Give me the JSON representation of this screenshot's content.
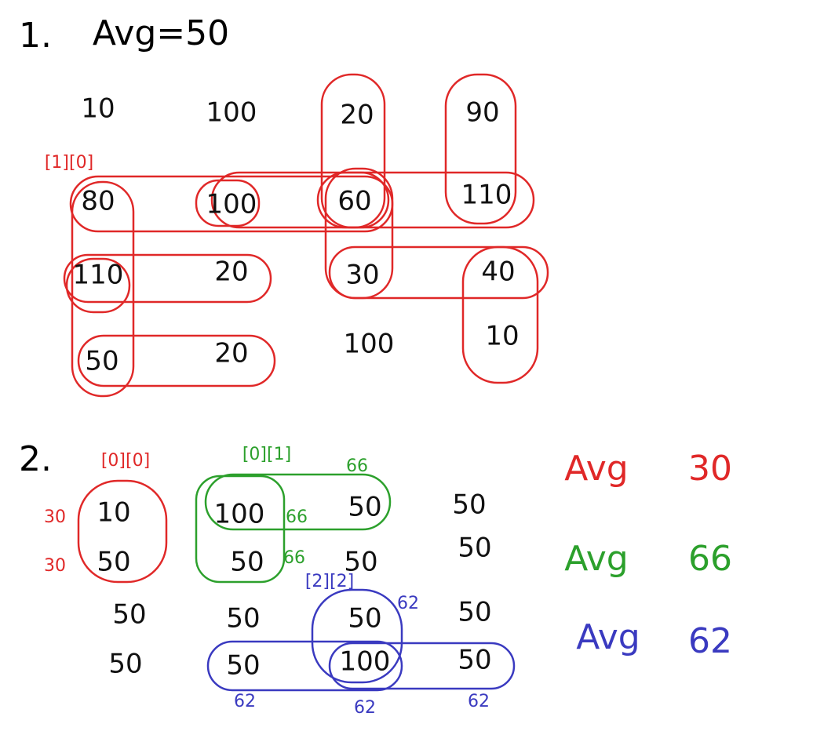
{
  "section1": {
    "number": "1.",
    "title": "Avg=50",
    "index_label": "[1][0]",
    "index_color": "#e02828",
    "grid": [
      [
        10,
        100,
        20,
        90
      ],
      [
        80,
        100,
        60,
        110
      ],
      [
        110,
        20,
        30,
        40
      ],
      [
        50,
        20,
        100,
        10
      ]
    ]
  },
  "section2": {
    "number": "2.",
    "grid": [
      [
        10,
        100,
        50,
        50
      ],
      [
        50,
        50,
        50,
        50
      ],
      [
        50,
        50,
        50,
        50
      ],
      [
        50,
        50,
        100,
        50
      ]
    ],
    "annotations": [
      {
        "text": "[0][0]",
        "color": "#e02828"
      },
      {
        "text": 30,
        "color": "#e02828"
      },
      {
        "text": 30,
        "color": "#e02828"
      },
      {
        "text": "[0][1]",
        "color": "#2ca02c"
      },
      {
        "text": 66,
        "color": "#2ca02c"
      },
      {
        "text": 66,
        "color": "#2ca02c"
      },
      {
        "text": 66,
        "color": "#2ca02c"
      },
      {
        "text": "[2][2]",
        "color": "#3a3ac0"
      },
      {
        "text": 62,
        "color": "#3a3ac0"
      },
      {
        "text": 62,
        "color": "#3a3ac0"
      },
      {
        "text": 62,
        "color": "#3a3ac0"
      },
      {
        "text": 62,
        "color": "#3a3ac0"
      }
    ],
    "averages": [
      {
        "label": "Avg",
        "value": 30,
        "color": "#e02828"
      },
      {
        "label": "Avg",
        "value": 66,
        "color": "#2ca02c"
      },
      {
        "label": "Avg",
        "value": 62,
        "color": "#3a3ac0"
      }
    ]
  }
}
